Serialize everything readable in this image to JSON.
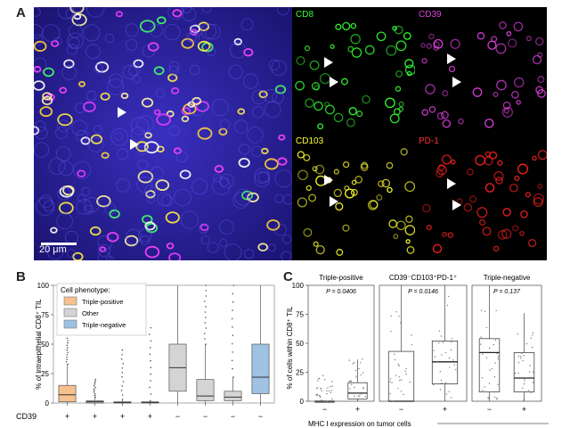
{
  "panel_letters": {
    "a": "A",
    "b": "B",
    "c": "C"
  },
  "panel_a": {
    "scale_bar": "20 μm",
    "channels": [
      {
        "label": "CD8",
        "color": "#33ff33"
      },
      {
        "label": "CD39",
        "color": "#e040e0"
      },
      {
        "label": "CD103",
        "color": "#ffff33"
      },
      {
        "label": "PD-1",
        "color": "#ff2020"
      }
    ]
  },
  "chart_data": [
    {
      "type": "box",
      "panel": "B",
      "ylabel": "% of intraepithelial CD8⁺ TIL",
      "ylim": [
        0,
        100
      ],
      "yticks": [
        0,
        25,
        50,
        75,
        100
      ],
      "legend_title": "Cell phenotype:",
      "legend_position": "top-left",
      "legend": [
        {
          "name": "Triple-positive",
          "color": "#f6c08f"
        },
        {
          "name": "Other",
          "color": "#d4d4d4"
        },
        {
          "name": "Triple-negative",
          "color": "#9fc2e2"
        }
      ],
      "row_label": "CD39",
      "cd39": [
        "+",
        "+",
        "+",
        "+",
        "−",
        "−",
        "−",
        "−"
      ],
      "groups": [
        "Triple-positive",
        "Other",
        "Other",
        "Other",
        "Other",
        "Other",
        "Other",
        "Triple-negative"
      ],
      "boxes": [
        {
          "q1": 1,
          "median": 7,
          "q3": 15,
          "lo": 0,
          "hi": 33,
          "max": 55
        },
        {
          "q1": 0,
          "median": 1,
          "q3": 2,
          "lo": 0,
          "hi": 5,
          "max": 20
        },
        {
          "q1": 0,
          "median": 0.5,
          "q3": 1,
          "lo": 0,
          "hi": 3,
          "max": 45
        },
        {
          "q1": 0,
          "median": 0.5,
          "q3": 1,
          "lo": 0,
          "hi": 2,
          "max": 64
        },
        {
          "q1": 10,
          "median": 30,
          "q3": 50,
          "lo": 0,
          "hi": 100,
          "max": 100
        },
        {
          "q1": 2,
          "median": 6,
          "q3": 20,
          "lo": 0,
          "hi": 50,
          "max": 100
        },
        {
          "q1": 2,
          "median": 5,
          "q3": 10,
          "lo": 0,
          "hi": 22,
          "max": 100
        },
        {
          "q1": 8,
          "median": 22,
          "q3": 50,
          "lo": 0,
          "hi": 100,
          "max": 100
        }
      ]
    },
    {
      "type": "box",
      "panel": "C",
      "ylabel": "% of cells within CD8⁺ TIL",
      "xlabel": "MHC I expression on tumor cells",
      "ylim": [
        0,
        100
      ],
      "yticks": [
        0,
        25,
        50,
        75,
        100
      ],
      "facets": [
        {
          "title": "Triple-positive",
          "p": "P = 0.0406",
          "categories": [
            "−",
            "+"
          ],
          "boxes": [
            {
              "q1": 0,
              "median": 0,
              "q3": 0,
              "lo": 0,
              "hi": 0,
              "max": 25
            },
            {
              "q1": 2,
              "median": 7,
              "q3": 16,
              "lo": 0,
              "hi": 36,
              "max": 50
            }
          ]
        },
        {
          "title": "CD39⁻CD103⁺PD-1⁺",
          "p": "P = 0.0146",
          "categories": [
            "−",
            "+"
          ],
          "boxes": [
            {
              "q1": 0,
              "median": 0,
              "q3": 43,
              "lo": 0,
              "hi": 100,
              "max": 100
            },
            {
              "q1": 15,
              "median": 34,
              "q3": 52,
              "lo": 0,
              "hi": 100,
              "max": 100
            }
          ]
        },
        {
          "title": "Triple-negative",
          "p": "P = 0.137",
          "categories": [
            "−",
            "+"
          ],
          "boxes": [
            {
              "q1": 8,
              "median": 42,
              "q3": 54,
              "lo": 0,
              "hi": 100,
              "max": 100
            },
            {
              "q1": 8,
              "median": 20,
              "q3": 42,
              "lo": 0,
              "hi": 76,
              "max": 90
            }
          ]
        }
      ]
    }
  ]
}
